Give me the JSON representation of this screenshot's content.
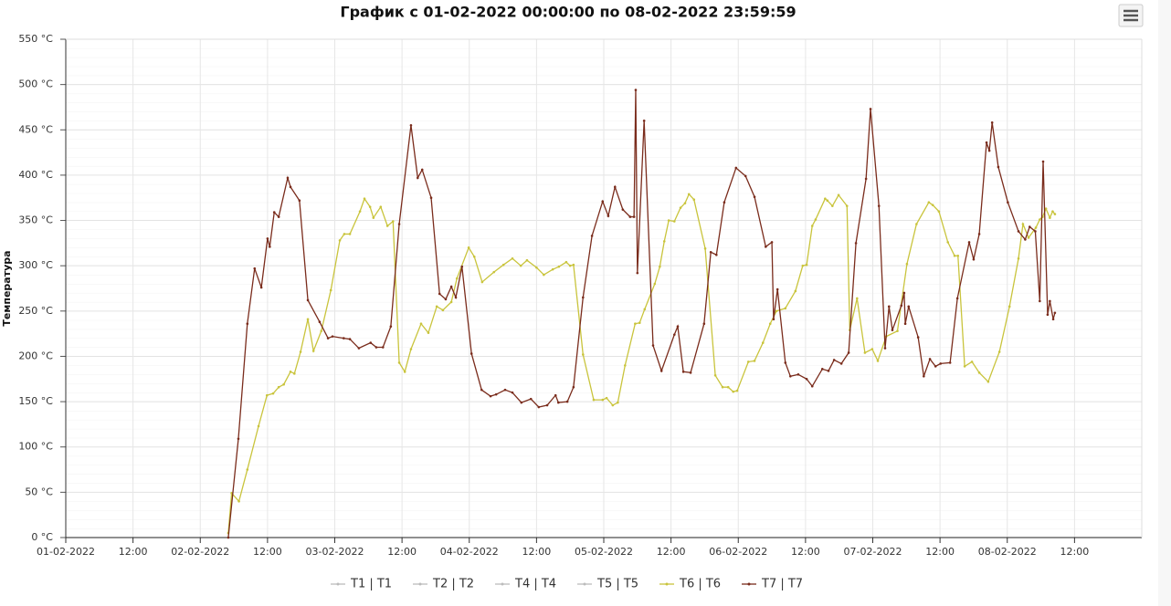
{
  "chart_data": {
    "type": "line",
    "title": "График с 01-02-2022 00:00:00 по 08-02-2022 23:59:59",
    "y_label": "Температура",
    "xlim": [
      0,
      192
    ],
    "xticks": [
      {
        "value": 0,
        "label": "01-02-2022"
      },
      {
        "value": 12,
        "label": "12:00"
      },
      {
        "value": 24,
        "label": "02-02-2022"
      },
      {
        "value": 36,
        "label": "12:00"
      },
      {
        "value": 48,
        "label": "03-02-2022"
      },
      {
        "value": 60,
        "label": "12:00"
      },
      {
        "value": 72,
        "label": "04-02-2022"
      },
      {
        "value": 84,
        "label": "12:00"
      },
      {
        "value": 96,
        "label": "05-02-2022"
      },
      {
        "value": 108,
        "label": "12:00"
      },
      {
        "value": 120,
        "label": "06-02-2022"
      },
      {
        "value": 132,
        "label": "12:00"
      },
      {
        "value": 144,
        "label": "07-02-2022"
      },
      {
        "value": 156,
        "label": "12:00"
      },
      {
        "value": 168,
        "label": "08-02-2022"
      },
      {
        "value": 180,
        "label": "12:00"
      }
    ],
    "ylim": [
      0,
      550
    ],
    "yticks": [
      {
        "value": 0,
        "label": "0 °C"
      },
      {
        "value": 50,
        "label": "50 °C"
      },
      {
        "value": 100,
        "label": "100 °C"
      },
      {
        "value": 150,
        "label": "150 °C"
      },
      {
        "value": 200,
        "label": "200 °C"
      },
      {
        "value": 250,
        "label": "250 °C"
      },
      {
        "value": 300,
        "label": "300 °C"
      },
      {
        "value": 350,
        "label": "350 °C"
      },
      {
        "value": 400,
        "label": "400 °C"
      },
      {
        "value": 450,
        "label": "450 °C"
      },
      {
        "value": 500,
        "label": "500 °C"
      },
      {
        "value": 550,
        "label": "550 °C"
      }
    ],
    "grid": true,
    "legend": "bottom",
    "series": [
      {
        "name": "T1 | T1",
        "visible": false,
        "x": [],
        "values": []
      },
      {
        "name": "T2 | T2",
        "visible": false,
        "x": [],
        "values": []
      },
      {
        "name": "T4 | T4",
        "visible": false,
        "x": [],
        "values": []
      },
      {
        "name": "T5 | T5",
        "visible": false,
        "x": [],
        "values": []
      },
      {
        "name": "T6 | T6",
        "visible": true,
        "color": "#c9c43c",
        "x": [
          29.0,
          29.6,
          30.9,
          32.4,
          34.4,
          35.9,
          37.0,
          38.0,
          38.9,
          40.1,
          40.8,
          41.9,
          43.2,
          44.2,
          45.6,
          47.3,
          48.9,
          49.7,
          50.7,
          52.5,
          53.3,
          54.3,
          54.9,
          56.2,
          57.4,
          58.4,
          59.5,
          60.5,
          61.6,
          63.4,
          64.7,
          66.2,
          67.3,
          68.8,
          69.8,
          71.9,
          72.9,
          74.3,
          76.4,
          78.1,
          79.7,
          81.2,
          82.3,
          84.0,
          85.3,
          86.9,
          88.0,
          89.3,
          90.0,
          90.6,
          92.3,
          94.2,
          95.8,
          96.5,
          97.6,
          98.5,
          99.8,
          101.6,
          102.4,
          103.3,
          105.1,
          106.0,
          106.8,
          107.6,
          108.6,
          109.7,
          110.5,
          111.2,
          112.1,
          114.1,
          115.9,
          117.2,
          118.2,
          119.1,
          119.8,
          121.8,
          122.9,
          124.4,
          125.7,
          126.8,
          128.4,
          130.2,
          131.5,
          132.2,
          133.2,
          133.8,
          135.5,
          135.9,
          136.8,
          137.9,
          139.4,
          139.9,
          141.2,
          142.6,
          143.9,
          144.9,
          146.4,
          148.4,
          150.1,
          151.8,
          154.0,
          154.7,
          155.8,
          157.4,
          158.6,
          159.2,
          160.4,
          161.7,
          163.0,
          164.6,
          166.6,
          168.4,
          170.0,
          170.8,
          171.8,
          173.1,
          173.8,
          174.3,
          174.9,
          175.6,
          176.1,
          176.5
        ],
        "values": [
          5,
          49,
          40,
          75,
          123,
          157,
          159,
          166,
          169,
          183,
          181,
          205,
          241,
          206,
          228,
          273,
          328,
          335,
          335,
          360,
          374,
          365,
          353,
          365,
          344,
          349,
          193,
          183,
          208,
          236,
          226,
          255,
          251,
          260,
          286,
          320,
          310,
          282,
          293,
          301,
          308,
          300,
          306,
          298,
          290,
          296,
          299,
          304,
          300,
          301,
          202,
          152,
          152,
          154,
          146,
          149,
          190,
          236,
          237,
          252,
          280,
          299,
          327,
          350,
          349,
          364,
          369,
          379,
          373,
          319,
          179,
          166,
          166,
          161,
          162,
          194,
          195,
          215,
          236,
          250,
          253,
          272,
          300,
          301,
          344,
          351,
          374,
          372,
          366,
          378,
          366,
          229,
          264,
          204,
          208,
          195,
          222,
          228,
          302,
          346,
          370,
          367,
          360,
          326,
          311,
          311,
          189,
          194,
          182,
          172,
          205,
          255,
          308,
          346,
          331,
          342,
          351,
          354,
          363,
          353,
          360,
          357
        ]
      },
      {
        "name": "T7 | T7",
        "visible": true,
        "color": "#7a2c1c",
        "x": [
          29.0,
          30.8,
          32.4,
          33.7,
          34.9,
          36.0,
          36.4,
          37.2,
          38.0,
          39.6,
          40.1,
          41.7,
          43.2,
          45.3,
          46.8,
          47.6,
          49.6,
          50.7,
          52.3,
          54.4,
          55.4,
          56.6,
          58.0,
          59.5,
          61.6,
          62.8,
          63.6,
          65.2,
          66.7,
          67.8,
          68.8,
          69.6,
          70.7,
          72.4,
          74.2,
          75.8,
          76.8,
          78.4,
          79.7,
          81.3,
          83.0,
          84.4,
          85.9,
          87.4,
          87.9,
          89.5,
          90.6,
          92.3,
          93.9,
          95.8,
          96.8,
          98.0,
          99.4,
          100.7,
          101.4,
          101.7,
          102.0,
          103.2,
          104.8,
          106.3,
          108.6,
          109.2,
          110.2,
          111.5,
          113.9,
          115.1,
          116.1,
          117.5,
          119.6,
          121.3,
          122.9,
          124.9,
          126.0,
          126.3,
          127.0,
          128.4,
          129.3,
          130.7,
          132.2,
          133.2,
          135.0,
          136.1,
          137.1,
          138.4,
          139.7,
          141.0,
          142.8,
          143.6,
          145.1,
          146.2,
          146.9,
          147.5,
          149.1,
          149.6,
          149.8,
          150.4,
          152.1,
          153.1,
          154.2,
          155.2,
          156.1,
          157.8,
          159.1,
          161.2,
          162.0,
          163.0,
          164.3,
          164.8,
          165.3,
          166.4,
          168.1,
          170.0,
          171.2,
          172.0,
          173.0,
          173.8,
          174.4,
          175.2,
          175.6,
          176.2,
          176.5
        ],
        "values": [
          0,
          109,
          236,
          297,
          276,
          330,
          321,
          359,
          354,
          397,
          387,
          372,
          262,
          238,
          220,
          222,
          220,
          219,
          209,
          215,
          210,
          210,
          233,
          346,
          455,
          397,
          406,
          375,
          269,
          263,
          277,
          265,
          299,
          203,
          163,
          156,
          158,
          163,
          160,
          149,
          153,
          144,
          146,
          157,
          149,
          150,
          166,
          265,
          333,
          371,
          355,
          387,
          362,
          354,
          354,
          494,
          292,
          460,
          212,
          184,
          224,
          233,
          183,
          182,
          236,
          315,
          312,
          370,
          408,
          399,
          376,
          321,
          326,
          241,
          274,
          193,
          178,
          180,
          175,
          167,
          186,
          184,
          196,
          192,
          204,
          325,
          396,
          473,
          366,
          209,
          255,
          229,
          256,
          270,
          236,
          255,
          221,
          178,
          197,
          189,
          192,
          193,
          264,
          326,
          307,
          335,
          436,
          427,
          458,
          409,
          370,
          338,
          329,
          343,
          338,
          261,
          415,
          246,
          261,
          241,
          248
        ]
      }
    ]
  }
}
